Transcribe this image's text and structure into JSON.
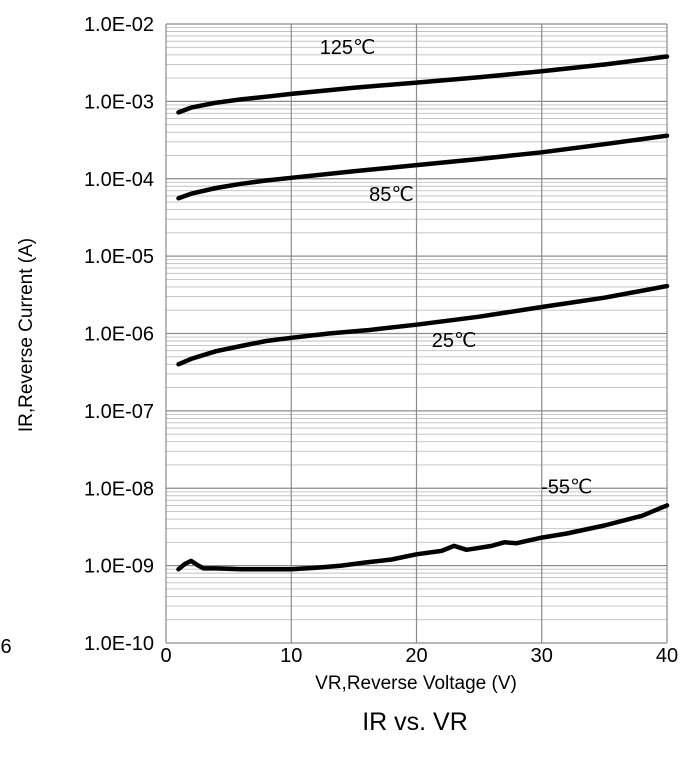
{
  "chart_data": {
    "type": "line",
    "title": "IR vs. VR",
    "xlabel": "VR,Reverse Voltage (V)",
    "ylabel": "IR,Reverse Current (A)",
    "xlim": [
      0,
      40
    ],
    "ylim": [
      1e-10,
      0.01
    ],
    "yscale": "log",
    "grid": true,
    "x_ticks": [
      "0",
      "10",
      "20",
      "30",
      "40"
    ],
    "y_ticks": [
      "1.0E-10",
      "1.0E-09",
      "1.0E-08",
      "1.0E-07",
      "1.0E-06",
      "1.0E-05",
      "1.0E-04",
      "1.0E-03",
      "1.0E-02"
    ],
    "stray_text": "6",
    "series": [
      {
        "name": "125℃",
        "x": [
          1,
          2,
          4,
          6,
          8,
          10,
          15,
          20,
          25,
          30,
          35,
          40
        ],
        "y": [
          0.00072,
          0.00083,
          0.00096,
          0.00106,
          0.00115,
          0.00125,
          0.0015,
          0.00175,
          0.00205,
          0.00245,
          0.003,
          0.0038
        ]
      },
      {
        "name": "85℃",
        "x": [
          1,
          2,
          4,
          6,
          8,
          10,
          15,
          20,
          25,
          30,
          35,
          40
        ],
        "y": [
          5.6e-05,
          6.4e-05,
          7.6e-05,
          8.6e-05,
          9.5e-05,
          0.000103,
          0.000125,
          0.00015,
          0.00018,
          0.00022,
          0.00028,
          0.00036
        ]
      },
      {
        "name": "25℃",
        "x": [
          1,
          2,
          4,
          6,
          8,
          10,
          13,
          16,
          20,
          25,
          30,
          35,
          40
        ],
        "y": [
          4e-07,
          4.7e-07,
          5.9e-07,
          6.9e-07,
          8e-07,
          8.8e-07,
          1e-06,
          1.1e-06,
          1.3e-06,
          1.65e-06,
          2.2e-06,
          2.9e-06,
          4.1e-06
        ]
      },
      {
        "name": "-55℃",
        "x": [
          1,
          1.5,
          2,
          2.5,
          3,
          4,
          6,
          8,
          10,
          12,
          14,
          16,
          18,
          20,
          22,
          23,
          24,
          26,
          27,
          28,
          30,
          32,
          35,
          38,
          40
        ],
        "y": [
          9e-10,
          1.05e-09,
          1.15e-09,
          1.02e-09,
          9.2e-10,
          9.2e-10,
          9e-10,
          9e-10,
          9e-10,
          9.4e-10,
          1e-09,
          1.1e-09,
          1.2e-09,
          1.4e-09,
          1.55e-09,
          1.8e-09,
          1.6e-09,
          1.8e-09,
          2e-09,
          1.95e-09,
          2.3e-09,
          2.6e-09,
          3.3e-09,
          4.4e-09,
          6e-09
        ]
      }
    ]
  }
}
